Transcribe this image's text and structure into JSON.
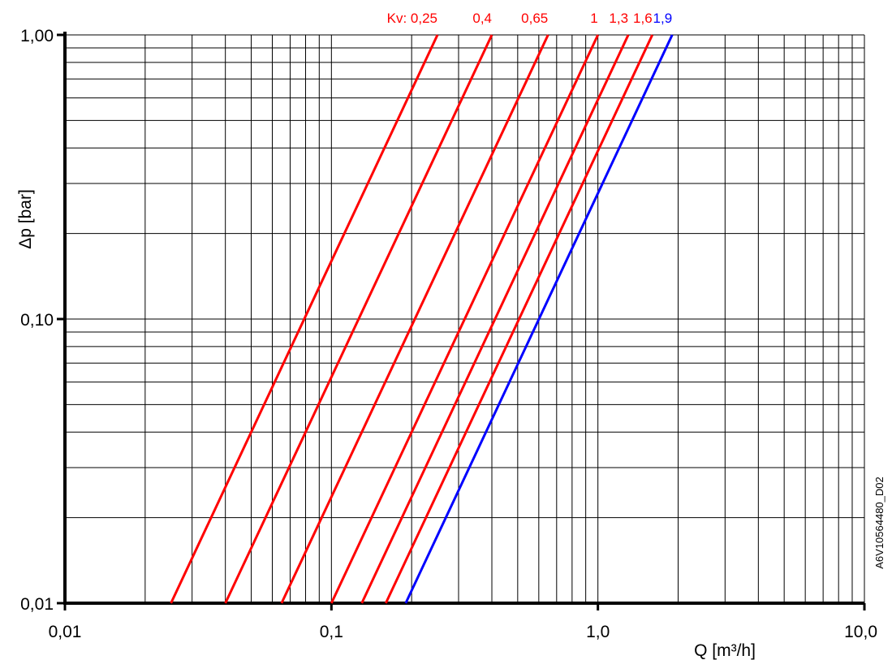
{
  "chart_data": {
    "type": "line",
    "xlabel": "Q [m³/h]",
    "ylabel": "Δp [bar]",
    "xscale": "log",
    "yscale": "log",
    "xlim": [
      0.01,
      10.0
    ],
    "ylim": [
      0.01,
      1.0
    ],
    "grid": true,
    "x_tick_labels": [
      "0,01",
      "0,1",
      "1,0",
      "10,0"
    ],
    "y_tick_labels": [
      "0,01",
      "0,10",
      "1,00"
    ],
    "x_tick_values": [
      0.01,
      0.1,
      1.0,
      10.0
    ],
    "y_tick_values": [
      0.01,
      0.1,
      1.0
    ],
    "kv_prefix": "Kv: ",
    "series": [
      {
        "name": "0,25",
        "kv": 0.25,
        "color": "#ff0000",
        "x": [
          0.025,
          0.25
        ],
        "y": [
          0.01,
          1.0
        ]
      },
      {
        "name": "0,4",
        "kv": 0.4,
        "color": "#ff0000",
        "x": [
          0.04,
          0.4
        ],
        "y": [
          0.01,
          1.0
        ]
      },
      {
        "name": "0,65",
        "kv": 0.65,
        "color": "#ff0000",
        "x": [
          0.065,
          0.65
        ],
        "y": [
          0.01,
          1.0
        ]
      },
      {
        "name": "1",
        "kv": 1.0,
        "color": "#ff0000",
        "x": [
          0.1,
          1.0
        ],
        "y": [
          0.01,
          1.0
        ]
      },
      {
        "name": "1,3",
        "kv": 1.3,
        "color": "#ff0000",
        "x": [
          0.13,
          1.3
        ],
        "y": [
          0.01,
          1.0
        ]
      },
      {
        "name": "1,6",
        "kv": 1.6,
        "color": "#ff0000",
        "x": [
          0.16,
          1.6
        ],
        "y": [
          0.01,
          1.0
        ]
      },
      {
        "name": "1,9",
        "kv": 1.9,
        "color": "#0000ff",
        "x": [
          0.19,
          1.9
        ],
        "y": [
          0.01,
          1.0
        ]
      }
    ],
    "side_code": "A6V10564480_D02"
  }
}
